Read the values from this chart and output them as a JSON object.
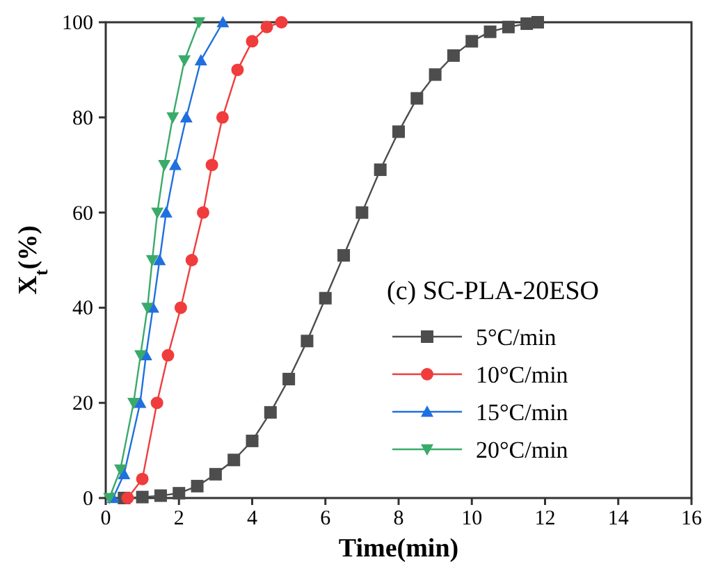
{
  "chart_data": {
    "type": "line",
    "xlabel": "Time(min)",
    "ylabel": "X$_{t}$(%)",
    "legend_title": "(c) SC-PLA-20ESO",
    "legend": "right",
    "xlim": [
      0,
      16
    ],
    "ylim": [
      0,
      100
    ],
    "xticks": [
      0,
      2,
      4,
      6,
      8,
      10,
      12,
      14,
      16
    ],
    "yticks": [
      0,
      20,
      40,
      60,
      80,
      100
    ],
    "series": [
      {
        "name": "5°C/min",
        "color": "#4d4d4d",
        "marker": "square",
        "x": [
          0.5,
          1,
          1.5,
          2,
          2.5,
          3,
          3.5,
          4,
          4.5,
          5,
          5.5,
          6,
          6.5,
          7,
          7.5,
          8,
          8.5,
          9,
          9.5,
          10,
          10.5,
          11,
          11.5,
          11.8
        ],
        "values": [
          0,
          0.2,
          0.5,
          1,
          2.5,
          5,
          8,
          12,
          18,
          25,
          33,
          42,
          51,
          60,
          69,
          77,
          84,
          89,
          93,
          96,
          98,
          99,
          99.7,
          100
        ]
      },
      {
        "name": "10°C/min",
        "color": "#f03c3c",
        "marker": "circle",
        "x": [
          0.6,
          1,
          1.4,
          1.7,
          2.05,
          2.35,
          2.66,
          2.9,
          3.19,
          3.6,
          4,
          4.4,
          4.8
        ],
        "values": [
          0,
          4,
          20,
          30,
          40,
          50,
          60,
          70,
          80,
          90,
          96,
          99,
          100
        ]
      },
      {
        "name": "15°C/min",
        "color": "#1f6fe0",
        "marker": "triangle",
        "x": [
          0.2,
          0.5,
          0.94,
          1.1,
          1.29,
          1.47,
          1.65,
          1.9,
          2.2,
          2.6,
          3.2
        ],
        "values": [
          0,
          5,
          20,
          30,
          40,
          50,
          60,
          70,
          80,
          92,
          100
        ]
      },
      {
        "name": "20°C/min",
        "color": "#3aaa6a",
        "marker": "triangle-down",
        "x": [
          0.1,
          0.4,
          0.76,
          0.95,
          1.14,
          1.27,
          1.41,
          1.6,
          1.83,
          2.15,
          2.55
        ],
        "values": [
          0,
          6,
          20,
          30,
          40,
          50,
          60,
          70,
          80,
          92,
          100
        ]
      }
    ]
  }
}
